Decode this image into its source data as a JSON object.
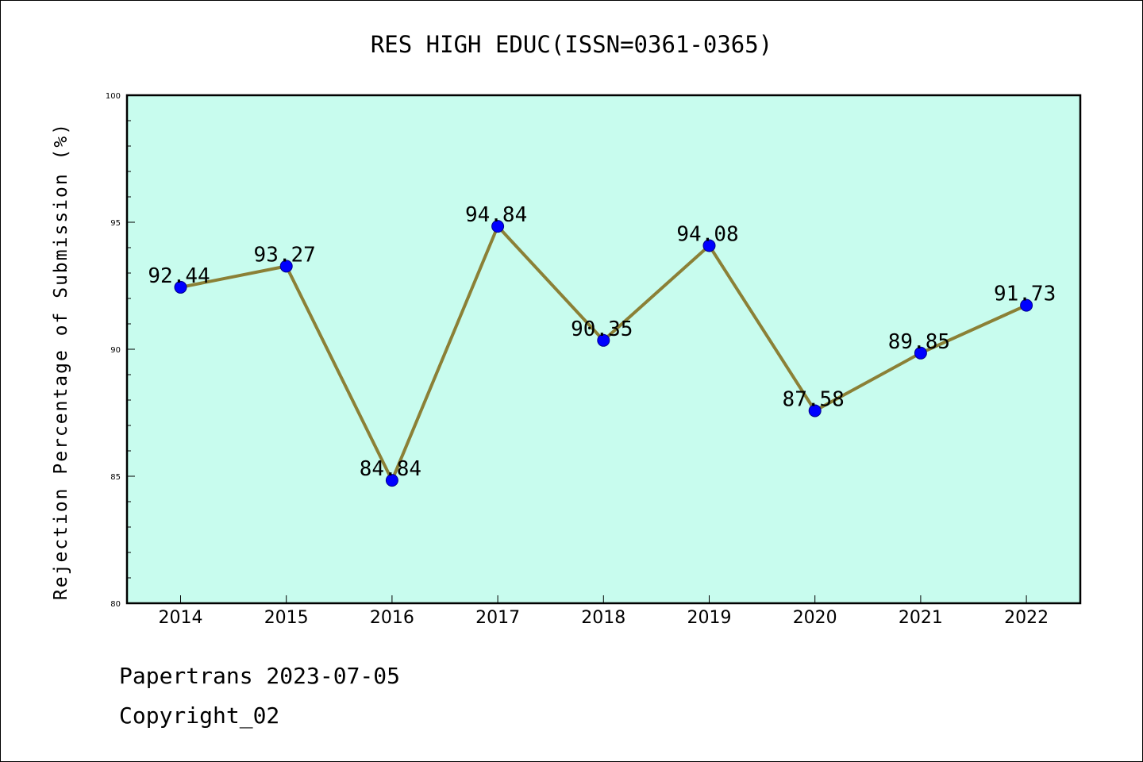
{
  "chart_data": {
    "type": "line",
    "title": "RES HIGH EDUC(ISSN=0361-0365)",
    "xlabel": "",
    "ylabel": "Rejection Percentage of Submission (%)",
    "categories": [
      "2014",
      "2015",
      "2016",
      "2017",
      "2018",
      "2019",
      "2020",
      "2021",
      "2022"
    ],
    "series": [
      {
        "values": [
          92.44,
          93.27,
          84.84,
          94.84,
          90.35,
          94.08,
          87.58,
          89.85,
          91.73
        ],
        "labels": [
          "92.44",
          "93.27",
          "84.84",
          "94.84",
          "90.35",
          "94.08",
          "87.58",
          "89.85",
          "91.73"
        ]
      }
    ],
    "ylim": [
      80,
      100
    ],
    "yticks": [
      "80",
      "85",
      "90",
      "95",
      "100"
    ],
    "grid": false,
    "colors": {
      "plot_background": "#c8fcee",
      "line": "#8b8036",
      "marker": "#0000ff"
    }
  },
  "footer": {
    "line1": "Papertrans 2023-07-05",
    "line2": "Copyright_02"
  }
}
